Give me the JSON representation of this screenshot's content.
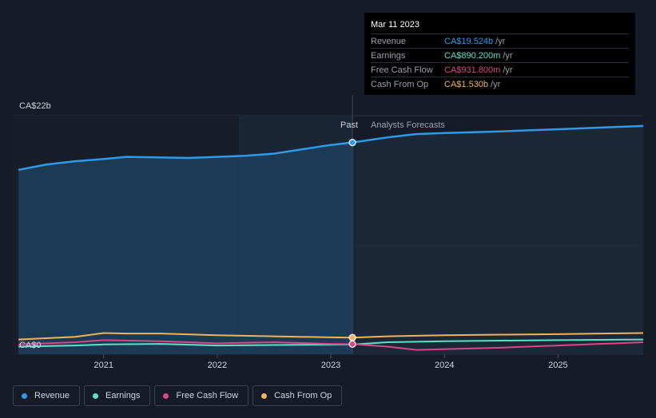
{
  "colors": {
    "revenue": "#2f9be8",
    "earnings": "#5ee0c8",
    "free_cash_flow": "#d9468a",
    "cash_from_op": "#f0b25c",
    "background": "#151b27",
    "past_area": "#1d3a55"
  },
  "tooltip": {
    "date": "Mar 11 2023",
    "rows": [
      {
        "label": "Revenue",
        "value": "CA$19.524b",
        "unit": "/yr"
      },
      {
        "label": "Earnings",
        "value": "CA$890.200m",
        "unit": "/yr"
      },
      {
        "label": "Free Cash Flow",
        "value": "CA$931.800m",
        "unit": "/yr"
      },
      {
        "label": "Cash From Op",
        "value": "CA$1.530b",
        "unit": "/yr"
      }
    ]
  },
  "legend": [
    {
      "label": "Revenue",
      "icon": "revenue-dot"
    },
    {
      "label": "Earnings",
      "icon": "earnings-dot"
    },
    {
      "label": "Free Cash Flow",
      "icon": "free-cash-flow-dot"
    },
    {
      "label": "Cash From Op",
      "icon": "cash-from-op-dot"
    }
  ],
  "chart_data": {
    "type": "line",
    "ylabel_top": "CA$22b",
    "ylabel_bottom": "CA$0",
    "past_label": "Past",
    "forecast_label": "Analysts Forecasts",
    "ylim": [
      0,
      22
    ],
    "xlim": [
      2020.2,
      2025.75
    ],
    "divider_x": 2023.19,
    "past_shade_start": 2022.19,
    "xticks": [
      {
        "value": 2021,
        "label": "2021"
      },
      {
        "value": 2022,
        "label": "2022"
      },
      {
        "value": 2023,
        "label": "2023"
      },
      {
        "value": 2024,
        "label": "2024"
      },
      {
        "value": 2025,
        "label": "2025"
      }
    ],
    "gridlines": [
      0,
      10,
      19.5,
      22
    ],
    "series": [
      {
        "name": "Revenue",
        "color_key": "revenue",
        "area": true,
        "x": [
          2020.25,
          2020.5,
          2020.75,
          2021.0,
          2021.2,
          2021.5,
          2021.75,
          2022.0,
          2022.25,
          2022.5,
          2022.75,
          2023.0,
          2023.19,
          2023.5,
          2023.75,
          2024.0,
          2024.5,
          2025.0,
          2025.5,
          2025.75
        ],
        "y": [
          17.0,
          17.5,
          17.8,
          18.0,
          18.2,
          18.15,
          18.1,
          18.2,
          18.3,
          18.5,
          18.9,
          19.3,
          19.524,
          20.0,
          20.3,
          20.4,
          20.55,
          20.75,
          20.95,
          21.05
        ]
      },
      {
        "name": "Earnings",
        "color_key": "earnings",
        "x": [
          2020.25,
          2020.75,
          2021.0,
          2021.5,
          2022.0,
          2022.5,
          2023.0,
          2023.19,
          2023.5,
          2024.0,
          2024.5,
          2025.0,
          2025.75
        ],
        "y": [
          0.7,
          0.8,
          0.9,
          0.95,
          0.8,
          0.85,
          0.88,
          0.89,
          1.1,
          1.2,
          1.25,
          1.3,
          1.35
        ]
      },
      {
        "name": "Free Cash Flow",
        "color_key": "free_cash_flow",
        "x": [
          2020.25,
          2020.75,
          2021.0,
          2021.5,
          2022.0,
          2022.5,
          2023.0,
          2023.19,
          2023.5,
          2023.75,
          2024.5,
          2025.0,
          2025.75
        ],
        "y": [
          0.9,
          1.1,
          1.3,
          1.2,
          1.0,
          1.1,
          0.95,
          0.93,
          0.7,
          0.4,
          0.6,
          0.8,
          1.1
        ]
      },
      {
        "name": "Cash From Op",
        "color_key": "cash_from_op",
        "x": [
          2020.25,
          2020.75,
          2021.0,
          2021.2,
          2021.5,
          2022.0,
          2022.5,
          2023.0,
          2023.19,
          2023.5,
          2024.0,
          2024.5,
          2025.0,
          2025.75
        ],
        "y": [
          1.35,
          1.6,
          1.95,
          1.9,
          1.9,
          1.75,
          1.65,
          1.55,
          1.53,
          1.65,
          1.75,
          1.8,
          1.85,
          1.95
        ]
      }
    ]
  }
}
